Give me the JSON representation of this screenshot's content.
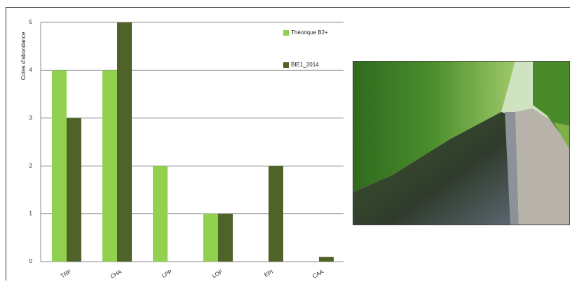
{
  "chart_data": {
    "type": "bar",
    "y_label": "Cotes d'abondance",
    "categories": [
      "TRF",
      "CHA",
      "LPP",
      "LOF",
      "EPI",
      "CAA"
    ],
    "series": [
      {
        "name": "Théorique B2+",
        "color": "#92d050",
        "values": [
          4,
          4,
          2,
          1,
          0,
          0
        ]
      },
      {
        "name": "BIE1_2014",
        "color": "#4f6228",
        "values": [
          3,
          5,
          0,
          1,
          2,
          0.1
        ]
      }
    ],
    "ylim": [
      0,
      5
    ],
    "yticks": [
      0,
      1,
      2,
      3,
      4,
      5
    ],
    "grid": true,
    "legend": "right"
  }
}
